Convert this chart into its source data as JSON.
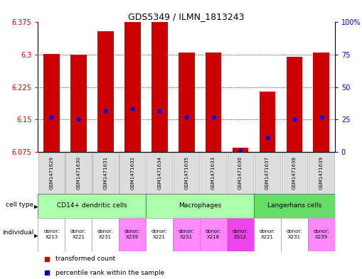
{
  "title": "GDS5349 / ILMN_1813243",
  "samples": [
    "GSM1471629",
    "GSM1471630",
    "GSM1471631",
    "GSM1471632",
    "GSM1471634",
    "GSM1471635",
    "GSM1471633",
    "GSM1471636",
    "GSM1471637",
    "GSM1471638",
    "GSM1471639"
  ],
  "bar_values": [
    6.302,
    6.3,
    6.355,
    6.375,
    6.375,
    6.305,
    6.305,
    6.085,
    6.215,
    6.295,
    6.305
  ],
  "percentile_values": [
    6.155,
    6.15,
    6.17,
    6.175,
    6.17,
    6.155,
    6.155,
    6.078,
    6.108,
    6.15,
    6.155
  ],
  "ymin": 6.075,
  "ymax": 6.375,
  "yticks": [
    6.075,
    6.15,
    6.225,
    6.3,
    6.375
  ],
  "right_yticks": [
    0,
    25,
    50,
    75,
    100
  ],
  "bar_color": "#cc0000",
  "percentile_color": "#0000cc",
  "cell_type_groups": [
    {
      "label": "CD14+ dendritic cells",
      "start": 0,
      "end": 3,
      "color": "#aaffaa"
    },
    {
      "label": "Macrophages",
      "start": 4,
      "end": 7,
      "color": "#aaffaa"
    },
    {
      "label": "Langerhans cells",
      "start": 8,
      "end": 10,
      "color": "#66dd66"
    }
  ],
  "individual_colors": [
    "#ffffff",
    "#ffffff",
    "#ffffff",
    "#ff88ff",
    "#ffffff",
    "#ff88ff",
    "#ff88ff",
    "#ee44ee",
    "#ffffff",
    "#ffffff",
    "#ff88ff"
  ],
  "individual_labels": [
    "donor:\nX213",
    "donor:\nX221",
    "donor:\nX231",
    "donor:\nX239",
    "donor:\nX221",
    "donor:\nX231",
    "donor:\nX218",
    "donor:\nX312",
    "donor:\nX221",
    "donor:\nX231",
    "donor:\nX239"
  ],
  "bg_color": "#ffffff",
  "bar_width": 0.6,
  "legend_red": "transformed count",
  "legend_blue": "percentile rank within the sample"
}
